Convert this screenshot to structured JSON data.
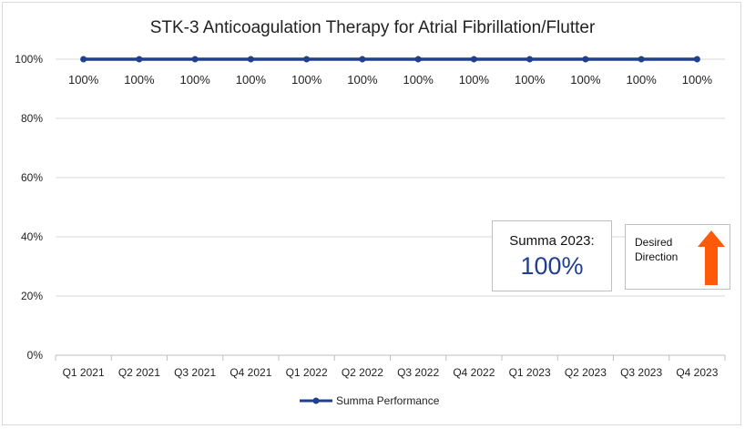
{
  "chart_data": {
    "type": "line",
    "title": "STK-3 Anticoagulation Therapy for Atrial Fibrillation/Flutter",
    "categories": [
      "Q1 2021",
      "Q2 2021",
      "Q3 2021",
      "Q4 2021",
      "Q1 2022",
      "Q2 2022",
      "Q3 2022",
      "Q4 2022",
      "Q1 2023",
      "Q2 2023",
      "Q3 2023",
      "Q4 2023"
    ],
    "series": [
      {
        "name": "Summa Performance",
        "values": [
          100,
          100,
          100,
          100,
          100,
          100,
          100,
          100,
          100,
          100,
          100,
          100
        ],
        "labels": [
          "100%",
          "100%",
          "100%",
          "100%",
          "100%",
          "100%",
          "100%",
          "100%",
          "100%",
          "100%",
          "100%",
          "100%"
        ],
        "color": "#1f3f8f"
      }
    ],
    "yticks": [
      "0%",
      "20%",
      "40%",
      "60%",
      "80%",
      "100%"
    ],
    "ylim": [
      0,
      100
    ],
    "grid": true,
    "legend": "bottom"
  },
  "summary": {
    "label": "Summa 2023:",
    "value": "100%",
    "color": "#1f3f8f"
  },
  "direction": {
    "line1": "Desired",
    "line2": "Direction",
    "arrow_icon": "up-arrow-icon",
    "arrow_color": "#ff5a0a"
  },
  "colors": {
    "grid": "#d9d9d9",
    "axis": "#bfbfbf"
  }
}
